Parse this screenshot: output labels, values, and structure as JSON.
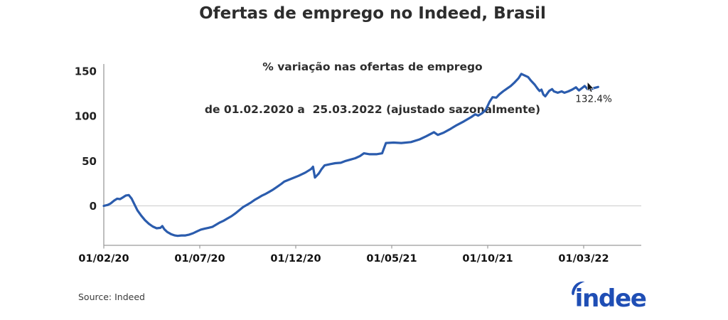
{
  "source": {
    "label": "Source: Indeed"
  },
  "branding": {
    "logo_text": "indeed",
    "logo_color": "#1f4eb5"
  },
  "chart_data": {
    "type": "line",
    "title": "Ofertas de emprego no Indeed, Brasil",
    "subtitle_line1": "% variação nas ofertas de emprego",
    "subtitle_line2": "de 01.02.2020 a  25.03.2022 (ajustado sazonalmente)",
    "x_axis": {
      "unit": "date",
      "data_start": "01.02.2020",
      "data_end": "25.03.2022",
      "domain_months": [
        0,
        28
      ],
      "tick_positions_months": [
        0,
        5,
        10,
        15,
        20,
        25
      ],
      "tick_labels": [
        "01/02/20",
        "01/07/20",
        "01/12/20",
        "01/05/21",
        "01/10/21",
        "01/03/22"
      ]
    },
    "y_axis": {
      "unit": "%",
      "domain": [
        -44,
        158
      ],
      "tick_values": [
        150,
        100,
        50,
        0
      ],
      "tick_labels": [
        "150",
        "100",
        "50",
        "0"
      ],
      "gridline_values": [
        0
      ]
    },
    "legend": {
      "visible": false
    },
    "grid": "horizontal-zero-line-only",
    "series": [
      {
        "name": "% variação nas ofertas de emprego (ajustado sazonalmente)",
        "color": "#2b5cad",
        "stroke_width": 3.2,
        "points_months_value": [
          [
            0,
            0
          ],
          [
            0.2,
            1
          ],
          [
            0.35,
            2.5
          ],
          [
            0.55,
            6
          ],
          [
            0.7,
            8
          ],
          [
            0.85,
            7.5
          ],
          [
            1.0,
            9.5
          ],
          [
            1.15,
            11.5
          ],
          [
            1.3,
            12
          ],
          [
            1.45,
            8
          ],
          [
            1.6,
            1.5
          ],
          [
            1.75,
            -5
          ],
          [
            1.95,
            -11
          ],
          [
            2.15,
            -16
          ],
          [
            2.35,
            -20
          ],
          [
            2.55,
            -23
          ],
          [
            2.75,
            -25
          ],
          [
            2.95,
            -24.5
          ],
          [
            3.05,
            -22.5
          ],
          [
            3.15,
            -26
          ],
          [
            3.3,
            -29
          ],
          [
            3.5,
            -31.5
          ],
          [
            3.7,
            -33
          ],
          [
            3.85,
            -33.5
          ],
          [
            4.05,
            -33
          ],
          [
            4.25,
            -33
          ],
          [
            4.45,
            -32
          ],
          [
            4.65,
            -30.5
          ],
          [
            4.85,
            -28.5
          ],
          [
            5.05,
            -26.5
          ],
          [
            5.25,
            -25.5
          ],
          [
            5.45,
            -24.5
          ],
          [
            5.65,
            -23.5
          ],
          [
            5.85,
            -21
          ],
          [
            6.05,
            -18.5
          ],
          [
            6.25,
            -16.5
          ],
          [
            6.45,
            -14
          ],
          [
            6.65,
            -11.5
          ],
          [
            6.85,
            -8.5
          ],
          [
            7.05,
            -5
          ],
          [
            7.25,
            -1.5
          ],
          [
            7.45,
            1
          ],
          [
            7.65,
            3.5
          ],
          [
            7.85,
            6.5
          ],
          [
            8.05,
            9
          ],
          [
            8.25,
            11.5
          ],
          [
            8.45,
            13.5
          ],
          [
            8.65,
            16
          ],
          [
            8.85,
            18.5
          ],
          [
            9.05,
            21.5
          ],
          [
            9.25,
            24.5
          ],
          [
            9.4,
            27
          ],
          [
            9.8,
            30.5
          ],
          [
            10.15,
            33.5
          ],
          [
            10.5,
            37
          ],
          [
            10.8,
            41
          ],
          [
            10.9,
            43.5
          ],
          [
            11.0,
            31.5
          ],
          [
            11.2,
            36
          ],
          [
            11.35,
            41
          ],
          [
            11.5,
            45
          ],
          [
            11.8,
            46.5
          ],
          [
            12.05,
            47.5
          ],
          [
            12.35,
            48
          ],
          [
            12.6,
            50
          ],
          [
            12.85,
            51.5
          ],
          [
            13.1,
            53
          ],
          [
            13.35,
            55.5
          ],
          [
            13.55,
            58.5
          ],
          [
            13.85,
            57.5
          ],
          [
            14.2,
            57.5
          ],
          [
            14.5,
            58.5
          ],
          [
            14.7,
            70
          ],
          [
            15.1,
            70.5
          ],
          [
            15.5,
            70
          ],
          [
            16.0,
            71
          ],
          [
            16.45,
            74
          ],
          [
            16.8,
            77.5
          ],
          [
            17.2,
            82
          ],
          [
            17.4,
            79
          ],
          [
            17.7,
            81.5
          ],
          [
            18.0,
            85
          ],
          [
            18.4,
            90
          ],
          [
            18.75,
            94
          ],
          [
            19.15,
            99
          ],
          [
            19.35,
            102
          ],
          [
            19.5,
            100.5
          ],
          [
            19.7,
            103
          ],
          [
            19.9,
            107
          ],
          [
            20.1,
            116
          ],
          [
            20.25,
            121
          ],
          [
            20.45,
            120.5
          ],
          [
            20.6,
            124
          ],
          [
            20.8,
            127.5
          ],
          [
            21.0,
            130.5
          ],
          [
            21.2,
            133.5
          ],
          [
            21.4,
            137.5
          ],
          [
            21.6,
            142
          ],
          [
            21.75,
            147
          ],
          [
            21.9,
            145.5
          ],
          [
            22.1,
            143.5
          ],
          [
            22.25,
            139.5
          ],
          [
            22.45,
            135
          ],
          [
            22.6,
            130.5
          ],
          [
            22.7,
            128
          ],
          [
            22.8,
            129.5
          ],
          [
            22.9,
            124
          ],
          [
            23.0,
            122
          ],
          [
            23.2,
            128
          ],
          [
            23.35,
            130
          ],
          [
            23.45,
            127.5
          ],
          [
            23.65,
            126
          ],
          [
            23.85,
            127.5
          ],
          [
            24.0,
            126
          ],
          [
            24.2,
            127.5
          ],
          [
            24.4,
            129.5
          ],
          [
            24.6,
            132
          ],
          [
            24.75,
            128.5
          ],
          [
            24.9,
            131
          ],
          [
            25.05,
            133.5
          ],
          [
            25.2,
            130
          ],
          [
            25.35,
            129.5
          ],
          [
            25.5,
            131
          ],
          [
            25.75,
            132.4
          ]
        ]
      }
    ],
    "end_annotation": {
      "label": "132.4%",
      "month": 25.75,
      "value": 132.4
    }
  }
}
